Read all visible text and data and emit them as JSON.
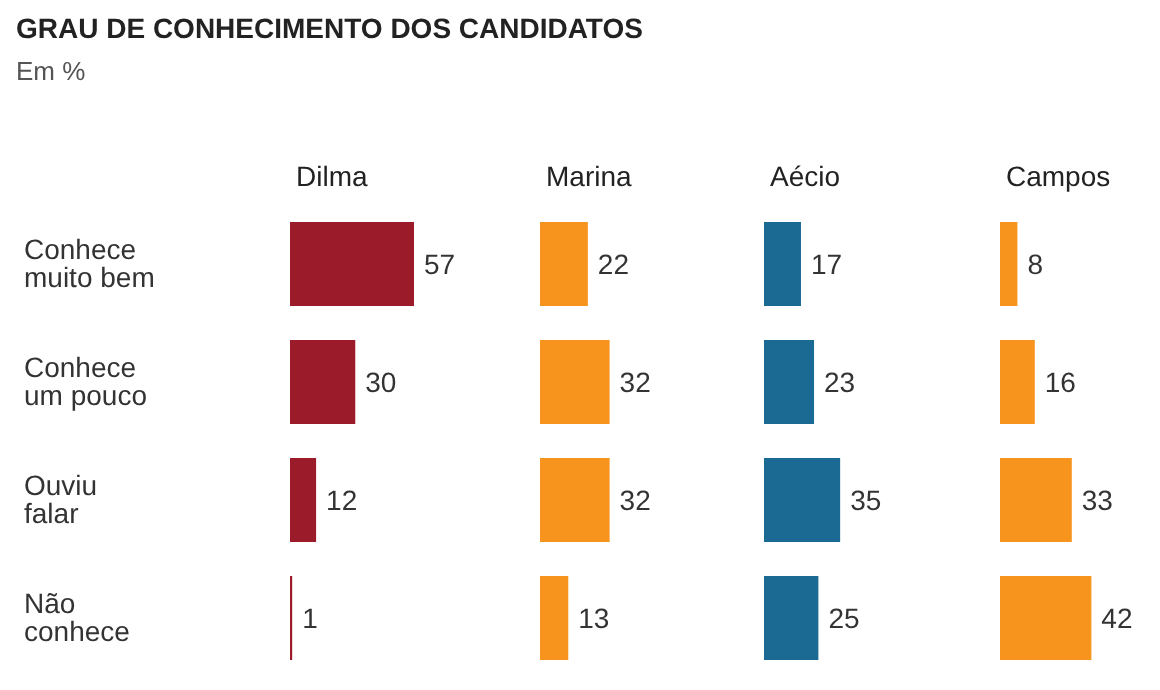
{
  "chart_data": [
    {
      "type": "bar",
      "orientation": "horizontal",
      "title": "Dilma",
      "annotations": [
        "GRAU DE CONHECIMENTO DOS CANDIDATOS",
        "Em %"
      ],
      "categories": [
        "Conhece muito bem",
        "Conhece um pouco",
        "Ouviu falar",
        "Não conhece"
      ],
      "values": [
        57,
        30,
        12,
        1
      ],
      "color": "#9b1b2a",
      "data_labels": true,
      "tick_labels": "y"
    },
    {
      "type": "bar",
      "orientation": "horizontal",
      "title": "Marina",
      "values": [
        22,
        32,
        32,
        13
      ],
      "color": "#f7941d",
      "data_labels": true,
      "tick_labels": false
    },
    {
      "type": "bar",
      "orientation": "horizontal",
      "title": "Aécio",
      "values": [
        17,
        23,
        35,
        25
      ],
      "color": "#1b6a93",
      "data_labels": true,
      "tick_labels": false
    },
    {
      "type": "bar",
      "orientation": "horizontal",
      "title": "Campos",
      "values": [
        8,
        16,
        33,
        42
      ],
      "color": "#f7941d",
      "data_labels": true,
      "tick_labels": false
    }
  ]
}
